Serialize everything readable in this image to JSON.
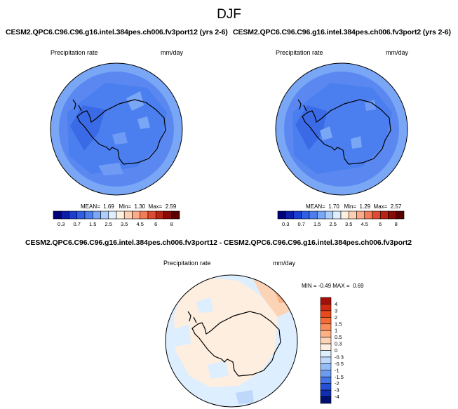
{
  "figure": {
    "title": "DJF",
    "colors": {
      "background": "#ffffff",
      "coastline": "#000000",
      "land_ocean_fill_left": "#4c76e8",
      "land_ocean_fill_right": "#4a74e6",
      "diff_base": "#ddeefe"
    }
  },
  "panels": {
    "left": {
      "title": "CESM2.QPC6.C96.C96.g16.intel.384pes.ch006.fv3port12 (yrs 2-6)",
      "variable": "Precipitation rate",
      "units": "mm/day",
      "stats": {
        "mean_label": "MEAN=",
        "mean": "1.69",
        "min_label": "Min=",
        "min": "1.30",
        "max_label": "Max=",
        "max": "2.59"
      }
    },
    "right": {
      "title": "CESM2.QPC6.C96.C96.g16.intel.384pes.ch006.fv3port2 (yrs 2-6)",
      "variable": "Precipitation rate",
      "units": "mm/day",
      "stats": {
        "mean_label": "MEAN=",
        "mean": "1.70",
        "min_label": "Min=",
        "min": "1.29",
        "max_label": "Max=",
        "max": "2.57"
      }
    },
    "diff": {
      "title": "CESM2.QPC6.C96.C96.g16.intel.384pes.ch006.fv3port12 - CESM2.QPC6.C96.C96.g16.intel.384pes.ch006.fv3port2",
      "variable": "Precipitation rate",
      "units": "mm/day",
      "stats": {
        "min_label": "MIN =",
        "min": "-0.49",
        "max_label": "MAX =",
        "max": "0.69"
      }
    }
  },
  "chart_data": [
    {
      "type": "heatmap",
      "projection": "south polar stereographic",
      "title": "CESM2.QPC6.C96.C96.g16.intel.384pes.ch006.fv3port12 (yrs 2-6)",
      "field": "Precipitation rate",
      "units": "mm/day",
      "mean": 1.69,
      "min": 1.3,
      "max": 2.59,
      "colorbar": {
        "orientation": "horizontal",
        "levels": [
          "0.3",
          "0.5",
          "0.7",
          "1",
          "1.5",
          "2",
          "2.5",
          "3",
          "3.5",
          "4",
          "4.5",
          "5",
          "6",
          "7",
          "8"
        ],
        "tick_labels": [
          "0.3",
          "0.7",
          "1.5",
          "2.5",
          "3.5",
          "4.5",
          "6",
          "8"
        ],
        "colors": [
          "#00007a",
          "#0b1ea8",
          "#1a3fd0",
          "#2f60e4",
          "#4b7ff0",
          "#7aa6f6",
          "#aecdfb",
          "#dfeefe",
          "#fef0e0",
          "#fdd0b2",
          "#fbab86",
          "#f37b57",
          "#df4b31",
          "#b62414",
          "#8a0a06",
          "#5a0000"
        ]
      }
    },
    {
      "type": "heatmap",
      "projection": "south polar stereographic",
      "title": "CESM2.QPC6.C96.C96.g16.intel.384pes.ch006.fv3port2 (yrs 2-6)",
      "field": "Precipitation rate",
      "units": "mm/day",
      "mean": 1.7,
      "min": 1.29,
      "max": 2.57,
      "colorbar": {
        "orientation": "horizontal",
        "levels": [
          "0.3",
          "0.5",
          "0.7",
          "1",
          "1.5",
          "2",
          "2.5",
          "3",
          "3.5",
          "4",
          "4.5",
          "5",
          "6",
          "7",
          "8"
        ],
        "tick_labels": [
          "0.3",
          "0.7",
          "1.5",
          "2.5",
          "3.5",
          "4.5",
          "6",
          "8"
        ],
        "colors": [
          "#00007a",
          "#0b1ea8",
          "#1a3fd0",
          "#2f60e4",
          "#4b7ff0",
          "#7aa6f6",
          "#aecdfb",
          "#dfeefe",
          "#fef0e0",
          "#fdd0b2",
          "#fbab86",
          "#f37b57",
          "#df4b31",
          "#b62414",
          "#8a0a06",
          "#5a0000"
        ]
      }
    },
    {
      "type": "heatmap",
      "projection": "south polar stereographic",
      "title": "CESM2.QPC6.C96.C96.g16.intel.384pes.ch006.fv3port12 - CESM2.QPC6.C96.C96.g16.intel.384pes.ch006.fv3port2",
      "field": "Precipitation rate",
      "units": "mm/day",
      "min": -0.49,
      "max": 0.69,
      "colorbar": {
        "orientation": "vertical",
        "levels": [
          "4",
          "3",
          "2",
          "1.5",
          "1",
          "0.5",
          "0.3",
          "0",
          "-0.3",
          "-0.5",
          "-1",
          "-1.5",
          "-2",
          "-3",
          "-4"
        ],
        "tick_labels": [
          "4",
          "3",
          "2",
          "1.5",
          "1",
          "0.5",
          "0.3",
          "0",
          "-0.3",
          "-0.5",
          "-1",
          "-1.5",
          "-2",
          "-3",
          "-4"
        ],
        "colors": [
          "#a50f0a",
          "#cf2a12",
          "#e8491d",
          "#f56b36",
          "#fa8d5a",
          "#fdb185",
          "#fdd3b6",
          "#fdeedf",
          "#ddeefe",
          "#bdd8fb",
          "#94bdf8",
          "#6c9bf0",
          "#4474e6",
          "#2350d6",
          "#102fb0",
          "#001070"
        ]
      }
    }
  ]
}
